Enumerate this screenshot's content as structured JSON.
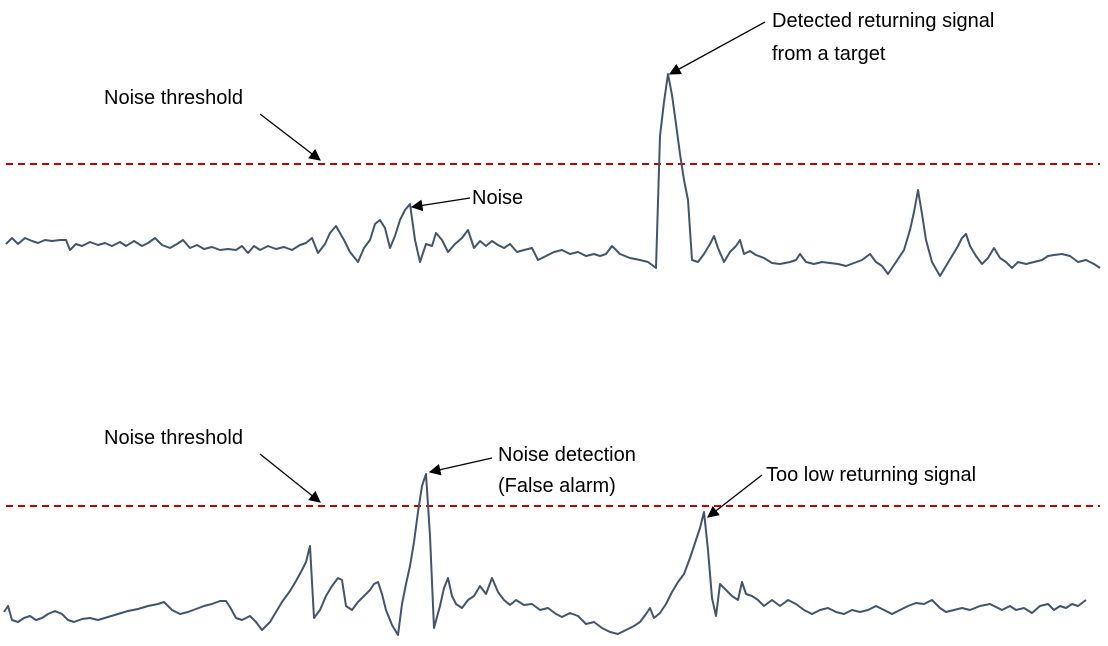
{
  "colors": {
    "signal": "#44546A",
    "threshold": "#C00000",
    "arrow": "#000000"
  },
  "panel_top": {
    "threshold_label": "Noise threshold",
    "noise_label": "Noise",
    "target_label_line1": "Detected returning signal",
    "target_label_line2": "from a target"
  },
  "panel_bottom": {
    "threshold_label": "Noise threshold",
    "false_alarm_line1": "Noise detection",
    "false_alarm_line2": "(False alarm)",
    "low_signal_label": "Too low returning signal"
  }
}
